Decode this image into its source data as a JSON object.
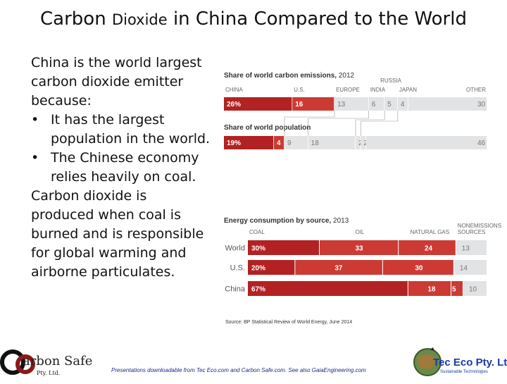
{
  "slide": {
    "title_main": "Carbon",
    "title_small": "Dioxide",
    "title_rest": "in China Compared to the World",
    "intro": "China is the world largest carbon dioxide emitter because:",
    "bullets": [
      "It has the largest population in the world.",
      "The Chinese economy relies heavily on coal."
    ],
    "conclusion": "Carbon dioxide is produced when coal is burned and is responsible for global warming and airborne particulates.",
    "source": "Source: BP Statistical Review of World Energy, June 2014",
    "footer": "Presentations downloadable from Tec Eco.com and Carbon Safe.com. See also GaiaEngineering.com",
    "logo_left_brand": "arbon Safe",
    "logo_left_mark": "CO",
    "logo_left_sub": "2",
    "logo_left_pty": "Pty. Ltd.",
    "logo_right_brand": "Tec Eco Pty. Ltd.",
    "logo_right_tag": "Sustainable Technologies"
  },
  "chart_data": [
    {
      "type": "bar",
      "orientation": "horizontal-stacked",
      "title": "Share of world carbon emissions,",
      "title_year": "2012",
      "categories": [
        "CHINA",
        "U.S.",
        "EUROPE",
        "INDIA",
        "RUSSIA",
        "JAPAN",
        "OTHER"
      ],
      "values": [
        26,
        16,
        13,
        6,
        5,
        4,
        30
      ],
      "value_labels": [
        "26%",
        "16",
        "13",
        "6",
        "5",
        "4",
        "30"
      ]
    },
    {
      "type": "bar",
      "orientation": "horizontal-stacked",
      "title": "Share of world population",
      "categories": [
        "CHINA",
        "U.S.",
        "EUROPE",
        "INDIA",
        "RUSSIA",
        "JAPAN",
        "OTHER"
      ],
      "values": [
        19,
        4,
        9,
        18,
        2,
        2,
        46
      ],
      "value_labels": [
        "19%",
        "4",
        "9",
        "18",
        "2",
        "2",
        "46"
      ]
    },
    {
      "type": "bar",
      "orientation": "horizontal-stacked",
      "title": "Energy consumption by source,",
      "title_year": "2013",
      "categories": [
        "COAL",
        "OIL",
        "NATURAL GAS",
        "NONEMISSIONS SOURCES"
      ],
      "category_lines": [
        [
          "COAL"
        ],
        [
          "OIL"
        ],
        [
          "NATURAL GAS"
        ],
        [
          "NONEMISSIONS",
          "SOURCES"
        ]
      ],
      "rows": [
        {
          "name": "World",
          "values": [
            30,
            33,
            24,
            13
          ],
          "value_labels": [
            "30%",
            "33",
            "24",
            "13"
          ]
        },
        {
          "name": "U.S.",
          "values": [
            20,
            37,
            30,
            14
          ],
          "value_labels": [
            "20%",
            "37",
            "30",
            "14"
          ]
        },
        {
          "name": "China",
          "values": [
            67,
            18,
            5,
            10
          ],
          "value_labels": [
            "67%",
            "18",
            "5",
            "10"
          ]
        }
      ]
    }
  ],
  "colors": {
    "red_dark": "#b22222",
    "red_light": "#cc3a34",
    "gray": "#e2e3e5",
    "gray_text": "#777777"
  }
}
